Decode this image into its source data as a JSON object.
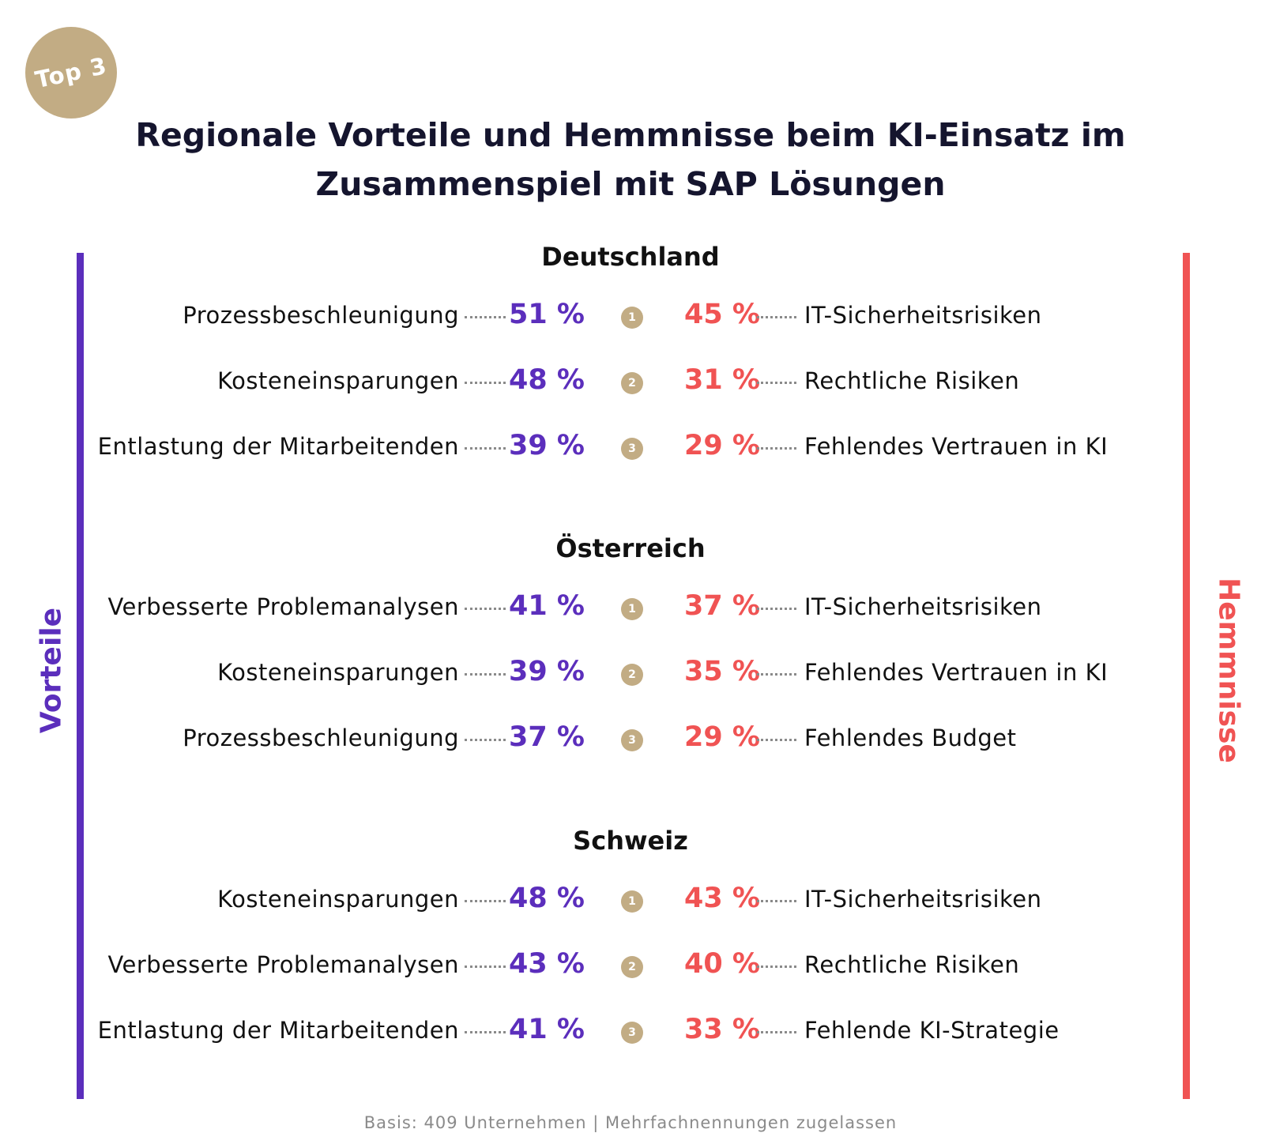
{
  "badge": "Top 3",
  "title": [
    "Regionale Vorteile und Hemmnisse beim KI-Einsatz im",
    "Zusammenspiel mit SAP Lösungen"
  ],
  "left_axis_label": "Vorteile",
  "right_axis_label": "Hemmnisse",
  "colors": {
    "vorteile": "#5b2ebc",
    "hemmnisse": "#f05353",
    "rank_badge": "#c2ac84"
  },
  "regions": [
    {
      "name": "Deutschland",
      "rows": [
        {
          "rank": "1",
          "vorteil": "Prozessbeschleunigung",
          "vorteil_value": "51 %",
          "hemmnis_value": "45 %",
          "hemmnis": "IT-Sicherheitsrisiken"
        },
        {
          "rank": "2",
          "vorteil": "Kosteneinsparungen",
          "vorteil_value": "48 %",
          "hemmnis_value": "31 %",
          "hemmnis": "Rechtliche Risiken"
        },
        {
          "rank": "3",
          "vorteil": "Entlastung der Mitarbeitenden",
          "vorteil_value": "39 %",
          "hemmnis_value": "29 %",
          "hemmnis": "Fehlendes Vertrauen in KI"
        }
      ]
    },
    {
      "name": "Österreich",
      "rows": [
        {
          "rank": "1",
          "vorteil": "Verbesserte Problemanalysen",
          "vorteil_value": "41 %",
          "hemmnis_value": "37 %",
          "hemmnis": "IT-Sicherheitsrisiken"
        },
        {
          "rank": "2",
          "vorteil": "Kosteneinsparungen",
          "vorteil_value": "39 %",
          "hemmnis_value": "35 %",
          "hemmnis": "Fehlendes Vertrauen in KI"
        },
        {
          "rank": "3",
          "vorteil": "Prozessbeschleunigung",
          "vorteil_value": "37 %",
          "hemmnis_value": "29 %",
          "hemmnis": "Fehlendes Budget"
        }
      ]
    },
    {
      "name": "Schweiz",
      "rows": [
        {
          "rank": "1",
          "vorteil": "Kosteneinsparungen",
          "vorteil_value": "48 %",
          "hemmnis_value": "43 %",
          "hemmnis": "IT-Sicherheitsrisiken"
        },
        {
          "rank": "2",
          "vorteil": "Verbesserte Problemanalysen",
          "vorteil_value": "43 %",
          "hemmnis_value": "40 %",
          "hemmnis": "Rechtliche Risiken"
        },
        {
          "rank": "3",
          "vorteil": "Entlastung der Mitarbeitenden",
          "vorteil_value": "41 %",
          "hemmnis_value": "33 %",
          "hemmnis": "Fehlende KI-Strategie"
        }
      ]
    }
  ],
  "footer": "Basis: 409 Unternehmen | Mehrfachnennungen zugelassen",
  "chart_data": {
    "type": "table",
    "columns": [
      "Vorteile",
      "Hemmnisse"
    ],
    "groups": [
      {
        "region": "Deutschland",
        "vorteile": [
          {
            "label": "Prozessbeschleunigung",
            "value": 51
          },
          {
            "label": "Kosteneinsparungen",
            "value": 48
          },
          {
            "label": "Entlastung der Mitarbeitenden",
            "value": 39
          }
        ],
        "hemmnisse": [
          {
            "label": "IT-Sicherheitsrisiken",
            "value": 45
          },
          {
            "label": "Rechtliche Risiken",
            "value": 31
          },
          {
            "label": "Fehlendes Vertrauen in KI",
            "value": 29
          }
        ]
      },
      {
        "region": "Österreich",
        "vorteile": [
          {
            "label": "Verbesserte Problemanalysen",
            "value": 41
          },
          {
            "label": "Kosteneinsparungen",
            "value": 39
          },
          {
            "label": "Prozessbeschleunigung",
            "value": 37
          }
        ],
        "hemmnisse": [
          {
            "label": "IT-Sicherheitsrisiken",
            "value": 37
          },
          {
            "label": "Fehlendes Vertrauen in KI",
            "value": 35
          },
          {
            "label": "Fehlendes Budget",
            "value": 29
          }
        ]
      },
      {
        "region": "Schweiz",
        "vorteile": [
          {
            "label": "Kosteneinsparungen",
            "value": 48
          },
          {
            "label": "Verbesserte Problemanalysen",
            "value": 43
          },
          {
            "label": "Entlastung der Mitarbeitenden",
            "value": 41
          }
        ],
        "hemmnisse": [
          {
            "label": "IT-Sicherheitsrisiken",
            "value": 43
          },
          {
            "label": "Rechtliche Risiken",
            "value": 40
          },
          {
            "label": "Fehlende KI-Strategie",
            "value": 33
          }
        ]
      }
    ],
    "unit": "%"
  }
}
